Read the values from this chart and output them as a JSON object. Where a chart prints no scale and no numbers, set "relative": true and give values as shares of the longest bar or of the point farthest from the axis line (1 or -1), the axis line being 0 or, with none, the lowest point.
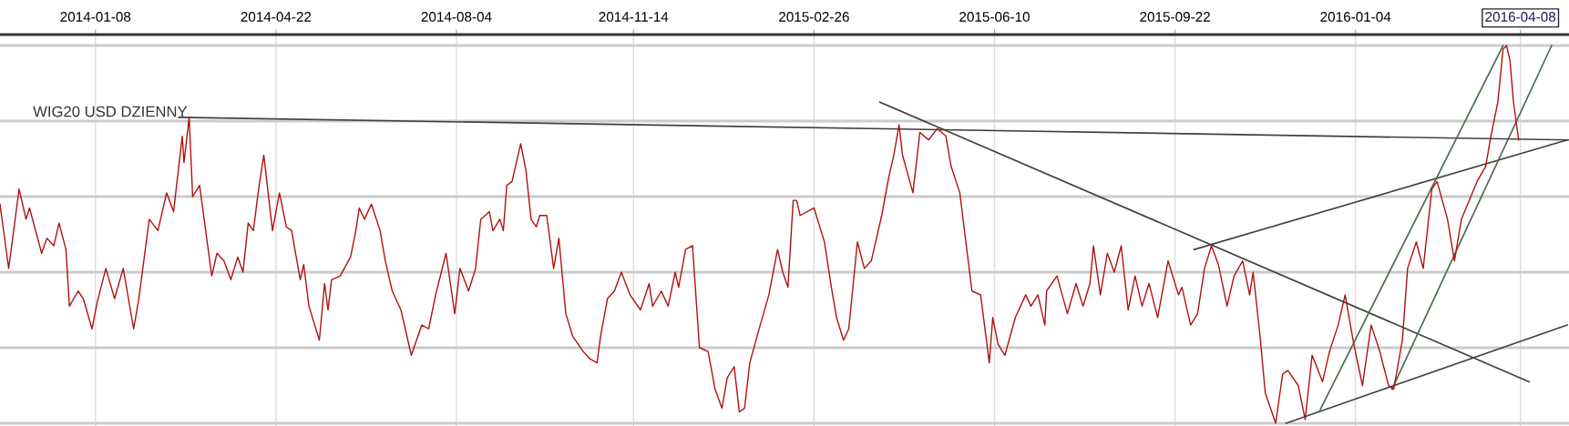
{
  "chart_data": {
    "type": "line",
    "title": "WIG20 USD DZIENNY",
    "relative": true,
    "grid": true,
    "tick_labels": "x",
    "legend": false,
    "marker": "none",
    "line_style": "solid",
    "xlim": [
      "2013-11-14",
      "2016-05-06"
    ],
    "xticks": [
      "2014-01-08",
      "2014-04-22",
      "2014-08-04",
      "2014-11-14",
      "2015-02-26",
      "2015-06-10",
      "2015-09-22",
      "2016-01-04",
      "2016-04-08"
    ],
    "series": [
      {
        "color": "#b01010",
        "x": [
          "2013-11-14",
          "2013-11-19",
          "2013-11-25",
          "2013-11-29",
          "2013-12-01",
          "2013-12-08",
          "2013-12-11",
          "2013-12-15",
          "2013-12-18",
          "2013-12-22",
          "2013-12-24",
          "2013-12-29",
          "2014-01-01",
          "2014-01-06",
          "2014-01-09",
          "2014-01-14",
          "2014-01-19",
          "2014-01-24",
          "2014-01-30",
          "2014-02-02",
          "2014-02-08",
          "2014-02-13",
          "2014-02-18",
          "2014-02-22",
          "2014-02-27",
          "2014-02-28",
          "2014-03-03",
          "2014-03-05",
          "2014-03-09",
          "2014-03-16",
          "2014-03-19",
          "2014-03-23",
          "2014-03-27",
          "2014-03-31",
          "2014-04-03",
          "2014-04-06",
          "2014-04-09",
          "2014-04-12",
          "2014-04-15",
          "2014-04-20",
          "2014-04-24",
          "2014-04-28",
          "2014-05-01",
          "2014-05-06",
          "2014-05-08",
          "2014-05-11",
          "2014-05-17",
          "2014-05-20",
          "2014-05-22",
          "2014-05-24",
          "2014-05-29",
          "2014-06-04",
          "2014-06-07",
          "2014-06-09",
          "2014-06-12",
          "2014-06-16",
          "2014-06-21",
          "2014-06-24",
          "2014-06-28",
          "2014-07-03",
          "2014-07-09",
          "2014-07-15",
          "2014-07-19",
          "2014-07-23",
          "2014-07-29",
          "2014-08-03",
          "2014-08-06",
          "2014-08-11",
          "2014-08-15",
          "2014-08-18",
          "2014-08-23",
          "2014-08-25",
          "2014-08-29",
          "2014-08-31",
          "2014-09-02",
          "2014-09-05",
          "2014-09-10",
          "2014-09-13",
          "2014-09-16",
          "2014-09-19",
          "2014-09-21",
          "2014-09-25",
          "2014-09-29",
          "2014-10-02",
          "2014-10-06",
          "2014-10-10",
          "2014-10-16",
          "2014-10-20",
          "2014-10-24",
          "2014-10-26",
          "2014-10-30",
          "2014-11-03",
          "2014-11-07",
          "2014-11-12",
          "2014-11-18",
          "2014-11-23",
          "2014-11-25",
          "2014-11-30",
          "2014-12-04",
          "2014-12-08",
          "2014-12-10",
          "2014-12-14",
          "2014-12-18",
          "2014-12-22",
          "2014-12-27",
          "2014-12-31",
          "2015-01-04",
          "2015-01-07",
          "2015-01-11",
          "2015-01-14",
          "2015-01-17",
          "2015-01-20",
          "2015-01-26",
          "2015-01-31",
          "2015-02-05",
          "2015-02-08",
          "2015-02-11",
          "2015-02-14",
          "2015-02-16",
          "2015-02-18",
          "2015-02-26",
          "2015-03-04",
          "2015-03-08",
          "2015-03-11",
          "2015-03-15",
          "2015-03-18",
          "2015-03-23",
          "2015-03-27",
          "2015-03-31",
          "2015-04-06",
          "2015-04-10",
          "2015-04-13",
          "2015-04-16",
          "2015-04-18",
          "2015-04-24",
          "2015-04-28",
          "2015-05-03",
          "2015-05-08",
          "2015-05-13",
          "2015-05-16",
          "2015-05-21",
          "2015-05-28",
          "2015-06-02",
          "2015-06-07",
          "2015-06-09",
          "2015-06-12",
          "2015-06-16",
          "2015-06-22",
          "2015-06-28",
          "2015-07-01",
          "2015-07-05",
          "2015-07-09",
          "2015-07-10",
          "2015-07-16",
          "2015-07-22",
          "2015-07-27",
          "2015-07-31",
          "2015-08-04",
          "2015-08-06",
          "2015-08-10",
          "2015-08-14",
          "2015-08-18",
          "2015-08-22",
          "2015-08-26",
          "2015-08-30",
          "2015-09-03",
          "2015-09-07",
          "2015-09-12",
          "2015-09-18",
          "2015-09-24",
          "2015-09-26",
          "2015-10-01",
          "2015-10-05",
          "2015-10-09",
          "2015-10-13",
          "2015-10-17",
          "2015-10-22",
          "2015-10-26",
          "2015-10-31",
          "2015-11-04",
          "2015-11-06",
          "2015-11-10",
          "2015-11-13",
          "2015-11-19",
          "2015-11-23",
          "2015-11-26",
          "2015-12-02",
          "2015-12-06",
          "2015-12-10",
          "2015-12-16",
          "2015-12-20",
          "2015-12-25",
          "2015-12-29",
          "2016-01-03",
          "2016-01-08",
          "2016-01-13",
          "2016-01-18",
          "2016-01-23",
          "2016-01-26",
          "2016-01-31",
          "2016-02-03",
          "2016-02-08",
          "2016-02-12",
          "2016-02-17",
          "2016-02-20",
          "2016-02-26",
          "2016-03-01",
          "2016-03-05",
          "2016-03-14",
          "2016-03-19",
          "2016-03-22",
          "2016-03-26",
          "2016-03-29",
          "2016-03-31",
          "2016-04-02",
          "2016-04-04",
          "2016-04-07"
        ],
        "values": [
          0.58,
          0.41,
          0.62,
          0.54,
          0.57,
          0.45,
          0.49,
          0.47,
          0.53,
          0.46,
          0.31,
          0.35,
          0.33,
          0.25,
          0.32,
          0.41,
          0.33,
          0.41,
          0.25,
          0.33,
          0.54,
          0.51,
          0.61,
          0.56,
          0.76,
          0.69,
          0.81,
          0.6,
          0.63,
          0.39,
          0.45,
          0.43,
          0.38,
          0.44,
          0.4,
          0.53,
          0.51,
          0.62,
          0.71,
          0.51,
          0.61,
          0.52,
          0.51,
          0.38,
          0.42,
          0.31,
          0.22,
          0.37,
          0.3,
          0.38,
          0.39,
          0.44,
          0.51,
          0.57,
          0.54,
          0.58,
          0.51,
          0.43,
          0.35,
          0.3,
          0.18,
          0.26,
          0.25,
          0.34,
          0.45,
          0.29,
          0.41,
          0.35,
          0.41,
          0.54,
          0.56,
          0.51,
          0.54,
          0.51,
          0.63,
          0.64,
          0.74,
          0.67,
          0.54,
          0.52,
          0.55,
          0.55,
          0.41,
          0.49,
          0.29,
          0.23,
          0.19,
          0.17,
          0.16,
          0.23,
          0.33,
          0.35,
          0.4,
          0.34,
          0.3,
          0.37,
          0.31,
          0.35,
          0.31,
          0.4,
          0.36,
          0.46,
          0.47,
          0.2,
          0.19,
          0.09,
          0.04,
          0.12,
          0.15,
          0.03,
          0.04,
          0.16,
          0.26,
          0.34,
          0.46,
          0.4,
          0.36,
          0.59,
          0.59,
          0.55,
          0.57,
          0.48,
          0.36,
          0.28,
          0.22,
          0.25,
          0.48,
          0.41,
          0.43,
          0.55,
          0.65,
          0.71,
          0.79,
          0.71,
          0.61,
          0.77,
          0.75,
          0.78,
          0.76,
          0.68,
          0.61,
          0.35,
          0.34,
          0.16,
          0.28,
          0.21,
          0.18,
          0.28,
          0.34,
          0.31,
          0.34,
          0.26,
          0.35,
          0.39,
          0.29,
          0.37,
          0.31,
          0.37,
          0.47,
          0.34,
          0.45,
          0.4,
          0.47,
          0.3,
          0.39,
          0.31,
          0.37,
          0.28,
          0.43,
          0.34,
          0.36,
          0.26,
          0.29,
          0.41,
          0.47,
          0.42,
          0.31,
          0.39,
          0.43,
          0.34,
          0.4,
          0.23,
          0.08,
          0.0,
          0.13,
          0.14,
          0.1,
          0.01,
          0.18,
          0.11,
          0.19,
          0.26,
          0.34,
          0.21,
          0.1,
          0.26,
          0.19,
          0.1,
          0.09,
          0.22,
          0.41,
          0.48,
          0.41,
          0.62,
          0.64,
          0.54,
          0.43,
          0.54,
          0.64,
          0.68,
          0.76,
          0.85,
          0.99,
          1.0,
          0.96,
          0.85,
          0.75
        ]
      },
      {
        "color": "#404040",
        "x": [
          "2014-02-25",
          "2016-05-06"
        ],
        "values": [
          0.81,
          0.75
        ]
      },
      {
        "color": "#404040",
        "x": [
          "2015-04-05",
          "2016-04-13"
        ],
        "values": [
          0.85,
          0.11
        ]
      },
      {
        "color": "#404040",
        "x": [
          "2015-10-03",
          "2016-05-05"
        ],
        "values": [
          0.46,
          0.75
        ]
      },
      {
        "color": "#404040",
        "x": [
          "2015-11-25",
          "2016-05-05"
        ],
        "values": [
          0.0,
          0.26
        ]
      },
      {
        "color": "#4a6a4a",
        "x": [
          "2015-12-14",
          "2016-03-29"
        ],
        "values": [
          0.03,
          1.0
        ]
      },
      {
        "color": "#4a6a4a",
        "x": [
          "2016-01-25",
          "2016-04-26"
        ],
        "values": [
          0.09,
          1.0
        ]
      }
    ]
  }
}
